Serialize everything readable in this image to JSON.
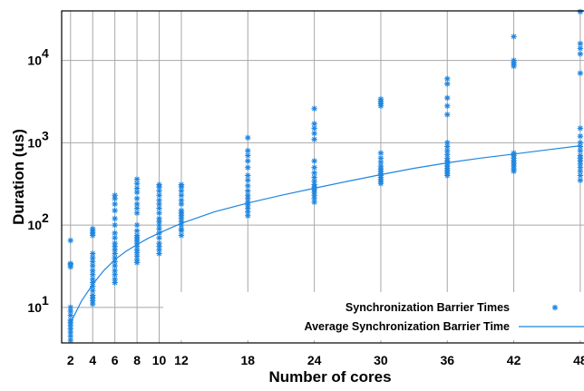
{
  "chart_data": {
    "type": "scatter",
    "xlabel": "Number of cores",
    "ylabel": "Duration (us)",
    "x_ticks": [
      2,
      4,
      6,
      8,
      10,
      12,
      18,
      24,
      30,
      36,
      42,
      48
    ],
    "xlim": [
      1.2,
      48.5
    ],
    "y_scale": "log",
    "ylim": [
      3.7,
      40000
    ],
    "y_ticks": [
      {
        "value": 10,
        "base": "10",
        "exp": "1"
      },
      {
        "value": 100,
        "base": "10",
        "exp": "2"
      },
      {
        "value": 1000,
        "base": "10",
        "exp": "3"
      },
      {
        "value": 10000,
        "base": "10",
        "exp": "4"
      }
    ],
    "grid": true,
    "legend_position": "bottom-right",
    "colors": {
      "series": "#1f86e0",
      "grid": "#a8a8a8"
    },
    "series": [
      {
        "name": "Synchronization Barrier Times",
        "style": "markers",
        "marker": "asterisk",
        "points_by_core": {
          "2": [
            4,
            4.5,
            5,
            5.5,
            6,
            6.5,
            7,
            8,
            9,
            10,
            31,
            33,
            34,
            65
          ],
          "4": [
            11,
            12,
            13,
            14,
            16,
            18,
            20,
            22,
            25,
            28,
            32,
            36,
            40,
            45,
            75,
            80,
            85,
            90
          ],
          "6": [
            20,
            22,
            25,
            28,
            32,
            36,
            40,
            45,
            50,
            55,
            60,
            70,
            80,
            100,
            120,
            150,
            180,
            210,
            230
          ],
          "8": [
            35,
            38,
            42,
            46,
            50,
            55,
            60,
            65,
            70,
            75,
            85,
            100,
            140,
            160,
            180,
            210,
            250,
            280,
            320,
            360
          ],
          "10": [
            45,
            50,
            55,
            60,
            70,
            80,
            90,
            100,
            110,
            120,
            140,
            160,
            180,
            200,
            230,
            260,
            290,
            310
          ],
          "12": [
            75,
            85,
            90,
            100,
            110,
            120,
            130,
            140,
            150,
            180,
            200,
            230,
            260,
            290,
            310
          ],
          "18": [
            130,
            145,
            160,
            175,
            190,
            210,
            230,
            260,
            300,
            350,
            400,
            500,
            600,
            700,
            800,
            1150
          ],
          "24": [
            190,
            210,
            230,
            250,
            270,
            290,
            310,
            340,
            380,
            430,
            500,
            600,
            1100,
            1300,
            1500,
            1700,
            2600
          ],
          "30": [
            320,
            340,
            360,
            380,
            400,
            420,
            450,
            480,
            520,
            580,
            650,
            750,
            2800,
            3000,
            3200,
            3400
          ],
          "36": [
            400,
            430,
            460,
            490,
            520,
            560,
            600,
            650,
            720,
            800,
            900,
            1000,
            2200,
            2800,
            3500,
            5200,
            6000
          ],
          "42": [
            450,
            480,
            520,
            560,
            600,
            650,
            700,
            750,
            8500,
            9000,
            9500,
            10000,
            19500
          ],
          "48": [
            350,
            400,
            450,
            500,
            550,
            600,
            650,
            700,
            800,
            900,
            1000,
            1200,
            1500,
            7000,
            12000,
            14000,
            16000,
            39000
          ]
        }
      },
      {
        "name": "Average Synchronization Barrier Time",
        "style": "line",
        "x": [
          2,
          3,
          4,
          5,
          6,
          7,
          8,
          9,
          10,
          11,
          12,
          15,
          18,
          21,
          24,
          27,
          30,
          33,
          36,
          39,
          42,
          45,
          48
        ],
        "values": [
          6.5,
          12,
          19,
          28,
          38,
          48,
          58,
          69,
          80,
          92,
          105,
          145,
          185,
          230,
          280,
          340,
          410,
          490,
          570,
          650,
          730,
          820,
          920
        ]
      }
    ]
  }
}
